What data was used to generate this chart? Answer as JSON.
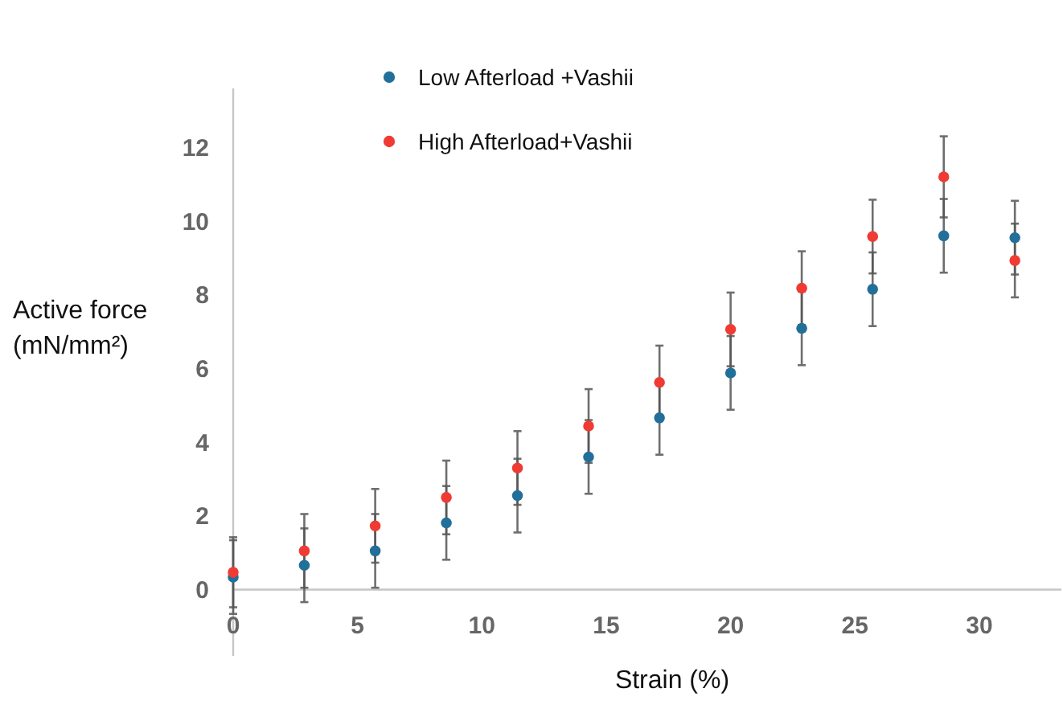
{
  "chart_data": {
    "type": "scatter",
    "xlabel": "Strain (%)",
    "ylabel": "Active force (mN/mm²)",
    "x": [
      0,
      2.86,
      5.71,
      8.57,
      11.43,
      14.29,
      17.14,
      20,
      22.86,
      25.71,
      28.57,
      31.43
    ],
    "series": [
      {
        "name": "Low Afterload +Vashii",
        "color": "#226f9a",
        "values": [
          0.34,
          0.66,
          1.05,
          1.81,
          2.55,
          3.6,
          4.66,
          5.88,
          7.09,
          8.15,
          9.6,
          9.55
        ],
        "errors": [
          1,
          1,
          1,
          1,
          1,
          1,
          1,
          1,
          1,
          1,
          1,
          1
        ]
      },
      {
        "name": "High Afterload+Vashii",
        "color": "#ef3b33",
        "values": [
          0.47,
          1.05,
          1.73,
          2.5,
          3.3,
          4.44,
          5.62,
          7.06,
          8.18,
          9.58,
          11.2,
          8.93
        ],
        "errors": [
          0.95,
          1,
          1,
          1,
          1,
          1,
          1,
          1,
          1,
          1,
          1.1,
          1
        ]
      }
    ],
    "xlim": [
      0,
      33.3
    ],
    "ylim": [
      -1.8,
      13.6
    ],
    "xticks": [
      0,
      5,
      10,
      15,
      20,
      25,
      30
    ],
    "yticks": [
      0,
      2,
      4,
      6,
      8,
      10,
      12
    ],
    "legend": "top",
    "marker": "circle"
  }
}
